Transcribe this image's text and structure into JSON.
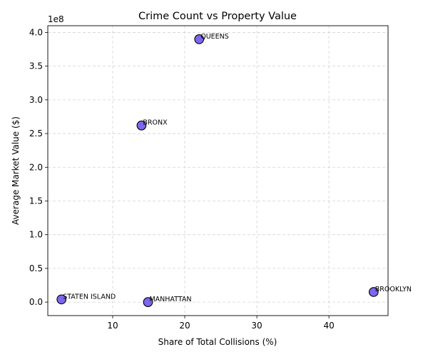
{
  "chart_data": {
    "type": "scatter",
    "title": "Crime Count vs Property Value",
    "xlabel": "Share of Total Collisions (%)",
    "ylabel": "Average Market Value ($)",
    "y_offset_text": "1e8",
    "y_scale": 100000000,
    "xlim": [
      1.0,
      48.2
    ],
    "ylim": [
      -20000000,
      410000000
    ],
    "xticks": [
      10,
      20,
      30,
      40
    ],
    "yticks": [
      0.0,
      0.5,
      1.0,
      1.5,
      2.0,
      2.5,
      3.0,
      3.5,
      4.0
    ],
    "grid": true,
    "marker_color": "#7b68ee",
    "points": [
      {
        "label": "QUEENS",
        "x": 22.0,
        "y": 390000000
      },
      {
        "label": "BRONX",
        "x": 14.0,
        "y": 262000000
      },
      {
        "label": "BROOKLYN",
        "x": 46.2,
        "y": 15000000
      },
      {
        "label": "STATEN ISLAND",
        "x": 2.9,
        "y": 4000000
      },
      {
        "label": "MANHATTAN",
        "x": 14.9,
        "y": 0
      }
    ]
  }
}
